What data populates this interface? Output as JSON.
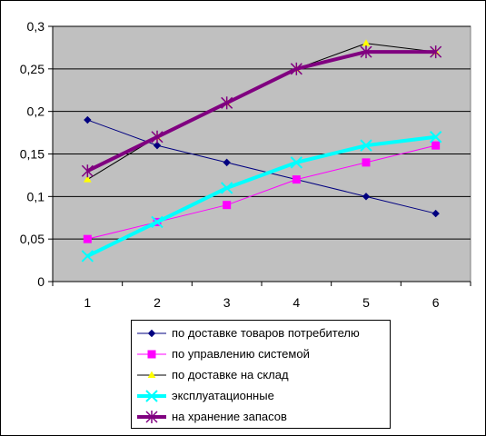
{
  "chart_data": {
    "type": "line",
    "categories": [
      "1",
      "2",
      "3",
      "4",
      "5",
      "6"
    ],
    "ylim": [
      0,
      0.3
    ],
    "yticks": [
      "0",
      "0,05",
      "0,1",
      "0,15",
      "0,2",
      "0,25",
      "0,3"
    ],
    "yticks_values": [
      0,
      0.05,
      0.1,
      0.15,
      0.2,
      0.25,
      0.3
    ],
    "grid": "horizontal",
    "plot_background": "#c0c0c0",
    "legend_position": "bottom",
    "series": [
      {
        "name": "по доставке товаров потребителю",
        "values": [
          0.19,
          0.16,
          0.14,
          0.12,
          0.1,
          0.08
        ],
        "color": "#000080",
        "marker": "diamond",
        "width": 1
      },
      {
        "name": "по управлению системой",
        "values": [
          0.05,
          0.07,
          0.09,
          0.12,
          0.14,
          0.16
        ],
        "color": "#ff00ff",
        "marker": "square",
        "width": 1
      },
      {
        "name": "по доставке на склад",
        "values": [
          0.12,
          0.17,
          0.21,
          0.25,
          0.28,
          0.27
        ],
        "color": "#000000",
        "marker": "triangle-yellow",
        "width": 1
      },
      {
        "name": "эксплуатационные",
        "values": [
          0.03,
          0.07,
          0.11,
          0.14,
          0.16,
          0.17
        ],
        "color": "#00ffff",
        "marker": "x",
        "width": 4
      },
      {
        "name": "на хранение запасов",
        "values": [
          0.13,
          0.17,
          0.21,
          0.25,
          0.27,
          0.27
        ],
        "color": "#800080",
        "marker": "star",
        "width": 4
      }
    ]
  }
}
